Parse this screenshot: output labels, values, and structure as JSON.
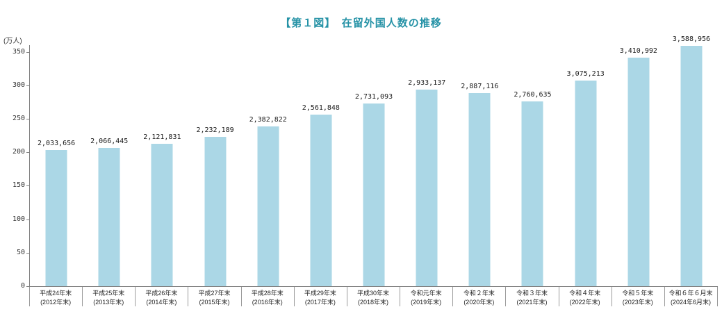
{
  "chart_data": {
    "type": "bar",
    "title": "【第１図】　在留外国人数の推移",
    "unit_label": "(万人)",
    "categories": [
      {
        "line1": "平成24年末",
        "line2": "(2012年末)"
      },
      {
        "line1": "平成25年末",
        "line2": "(2013年末)"
      },
      {
        "line1": "平成26年末",
        "line2": "(2014年末)"
      },
      {
        "line1": "平成27年末",
        "line2": "(2015年末)"
      },
      {
        "line1": "平成28年末",
        "line2": "(2016年末)"
      },
      {
        "line1": "平成29年末",
        "line2": "(2017年末)"
      },
      {
        "line1": "平成30年末",
        "line2": "(2018年末)"
      },
      {
        "line1": "令和元年末",
        "line2": "(2019年末)"
      },
      {
        "line1": "令和２年末",
        "line2": "(2020年末)"
      },
      {
        "line1": "令和３年末",
        "line2": "(2021年末)"
      },
      {
        "line1": "令和４年末",
        "line2": "(2022年末)"
      },
      {
        "line1": "令和５年末",
        "line2": "(2023年末)"
      },
      {
        "line1": "令和６年６月末",
        "line2": "(2024年6月末)"
      }
    ],
    "values_persons": [
      2033656,
      2066445,
      2121831,
      2232189,
      2382822,
      2561848,
      2731093,
      2933137,
      2887116,
      2760635,
      3075213,
      3410992,
      3588956
    ],
    "bar_labels": [
      "2,033,656",
      "2,066,445",
      "2,121,831",
      "2,232,189",
      "2,382,822",
      "2,561,848",
      "2,731,093",
      "2,933,137",
      "2,887,116",
      "2,760,635",
      "3,075,213",
      "3,410,992",
      "3,588,956"
    ],
    "ylabel": "",
    "xlabel": "",
    "yticks": [
      0,
      50,
      100,
      150,
      200,
      250,
      300,
      350
    ],
    "ylim": [
      0,
      360
    ],
    "unit_divisor": 10000,
    "grid": false,
    "legend": "none",
    "colors": {
      "bar": "#abd7e6",
      "axis": "#808080",
      "title": "#2592a6",
      "text": "#333333"
    }
  }
}
